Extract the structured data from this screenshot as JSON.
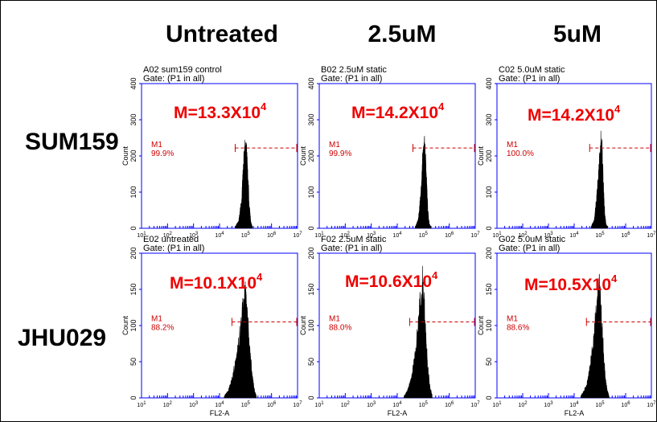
{
  "col_headers": [
    "Untreated",
    "2.5uM",
    "5uM"
  ],
  "row_headers": [
    "SUM159",
    "JHU029"
  ],
  "colors": {
    "plot_frame": "#0000ff",
    "histogram": "#000000",
    "gate": "#cc0000",
    "overlay_text": "#ee0000"
  },
  "chart_data": [
    {
      "type": "area",
      "title": "A02 sum159 control",
      "subtitle": "Gate: (P1 in all)",
      "xlabel": "",
      "ylabel": "Count",
      "ylim": [
        0,
        400
      ],
      "yticks": [
        "0",
        "100",
        "200",
        "300",
        "400"
      ],
      "xscale": "log",
      "xlim": [
        10,
        10000000
      ],
      "x": [
        40000,
        55000,
        70000,
        80000,
        90000,
        100000,
        110000,
        125000,
        140000,
        160000,
        185000
      ],
      "y": [
        3,
        20,
        75,
        150,
        200,
        230,
        200,
        130,
        60,
        15,
        3
      ],
      "marker": {
        "label": "M1",
        "percent": "99.9%",
        "gate_range": [
          40000,
          10000000
        ],
        "gate_count": 222
      },
      "annotation": {
        "base": "M=13.3X10",
        "exp": "4"
      }
    },
    {
      "type": "area",
      "title": "B02 2.5uM static",
      "subtitle": "Gate: (P1 in all)",
      "xlabel": "",
      "ylabel": "Count",
      "ylim": [
        0,
        400
      ],
      "yticks": [
        "0",
        "100",
        "200",
        "300",
        "400"
      ],
      "xscale": "log",
      "xlim": [
        10,
        10000000
      ],
      "x": [
        50000,
        65000,
        80000,
        90000,
        100000,
        110000,
        120000,
        135000,
        150000,
        170000,
        200000
      ],
      "y": [
        3,
        25,
        90,
        160,
        205,
        225,
        200,
        120,
        50,
        12,
        2
      ],
      "marker": {
        "label": "M1",
        "percent": "99.9%",
        "gate_range": [
          40000,
          10000000
        ],
        "gate_count": 222
      },
      "annotation": {
        "base": "M=14.2X10",
        "exp": "4"
      }
    },
    {
      "type": "area",
      "title": "C02 5.0uM static",
      "subtitle": "Gate: (P1 in all)",
      "xlabel": "",
      "ylabel": "Count",
      "ylim": [
        0,
        400
      ],
      "yticks": [
        "0",
        "100",
        "200",
        "300",
        "400"
      ],
      "xscale": "log",
      "xlim": [
        10,
        10000000
      ],
      "x": [
        45000,
        60000,
        75000,
        90000,
        100000,
        110000,
        120000,
        135000,
        150000,
        170000,
        200000
      ],
      "y": [
        3,
        22,
        80,
        150,
        200,
        245,
        210,
        130,
        55,
        12,
        2
      ],
      "marker": {
        "label": "M1",
        "percent": "100.0%",
        "gate_range": [
          40000,
          10000000
        ],
        "gate_count": 222
      },
      "annotation": {
        "base": "M=14.2X10",
        "exp": "4"
      }
    },
    {
      "type": "area",
      "title": "E02 untreated",
      "subtitle": "Gate: (P1 in all)",
      "xlabel": "FL2-A",
      "ylabel": "Count",
      "ylim": [
        0,
        200
      ],
      "yticks": [
        "0",
        "50",
        "100",
        "150",
        "200"
      ],
      "xscale": "log",
      "xlim": [
        10,
        10000000
      ],
      "x": [
        15000,
        22000,
        30000,
        40000,
        50000,
        60000,
        70000,
        80000,
        90000,
        100000,
        110000,
        130000,
        150000,
        180000,
        220000,
        260000
      ],
      "y": [
        2,
        10,
        25,
        45,
        65,
        85,
        105,
        120,
        135,
        140,
        120,
        90,
        60,
        30,
        10,
        2
      ],
      "marker": {
        "label": "M1",
        "percent": "88.2%",
        "gate_range": [
          30000,
          10000000
        ],
        "gate_count": 105
      },
      "annotation": {
        "base": "M=10.1X10",
        "exp": "4"
      }
    },
    {
      "type": "area",
      "title": "F02 2.5uM static",
      "subtitle": "Gate: (P1 in all)",
      "xlabel": "FL2-A",
      "ylabel": "Count",
      "ylim": [
        0,
        200
      ],
      "yticks": [
        "0",
        "50",
        "100",
        "150",
        "200"
      ],
      "xscale": "log",
      "xlim": [
        10,
        10000000
      ],
      "x": [
        18000,
        25000,
        35000,
        45000,
        55000,
        65000,
        75000,
        85000,
        95000,
        105000,
        115000,
        130000,
        150000,
        180000,
        220000
      ],
      "y": [
        2,
        10,
        25,
        50,
        75,
        100,
        125,
        150,
        160,
        140,
        110,
        75,
        40,
        15,
        3
      ],
      "marker": {
        "label": "M1",
        "percent": "88.0%",
        "gate_range": [
          30000,
          10000000
        ],
        "gate_count": 105
      },
      "annotation": {
        "base": "M=10.6X10",
        "exp": "4"
      }
    },
    {
      "type": "area",
      "title": "G02 5.0uM static",
      "subtitle": "Gate: (P1 in all)",
      "xlabel": "FL2-A",
      "ylabel": "Count",
      "ylim": [
        0,
        200
      ],
      "yticks": [
        "0",
        "50",
        "100",
        "150",
        "200"
      ],
      "xscale": "log",
      "xlim": [
        10,
        10000000
      ],
      "x": [
        18000,
        25000,
        35000,
        45000,
        55000,
        65000,
        75000,
        85000,
        95000,
        105000,
        120000,
        140000,
        160000,
        190000,
        230000
      ],
      "y": [
        2,
        10,
        25,
        50,
        75,
        100,
        120,
        140,
        150,
        130,
        95,
        60,
        30,
        10,
        2
      ],
      "marker": {
        "label": "M1",
        "percent": "88.6%",
        "gate_range": [
          30000,
          10000000
        ],
        "gate_count": 105
      },
      "annotation": {
        "base": "M=10.5X10",
        "exp": "4"
      }
    }
  ]
}
